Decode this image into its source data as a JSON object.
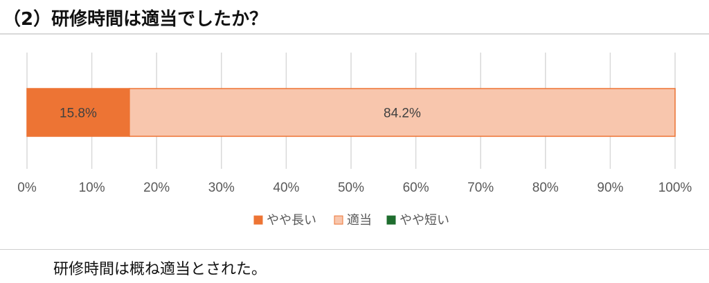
{
  "heading": "（2）研修時間は適当でしたか？",
  "conclusion": "研修時間は概ね適当とされた。",
  "chart_data": {
    "type": "bar",
    "orientation": "horizontal",
    "stacked": "percent",
    "categories": [
      ""
    ],
    "series": [
      {
        "name": "やや長い",
        "values": [
          15.8
        ],
        "label": "15.8%",
        "color": "#ed7434"
      },
      {
        "name": "適当",
        "values": [
          84.2
        ],
        "label": "84.2%",
        "color": "#f8c6ad"
      },
      {
        "name": "やや短い",
        "values": [
          0
        ],
        "label": "",
        "color": "#1e6d2e"
      }
    ],
    "xlim": [
      0,
      100
    ],
    "xticks": [
      "0%",
      "10%",
      "20%",
      "30%",
      "40%",
      "50%",
      "60%",
      "70%",
      "80%",
      "90%",
      "100%"
    ],
    "grid": true,
    "legend_position": "bottom"
  }
}
